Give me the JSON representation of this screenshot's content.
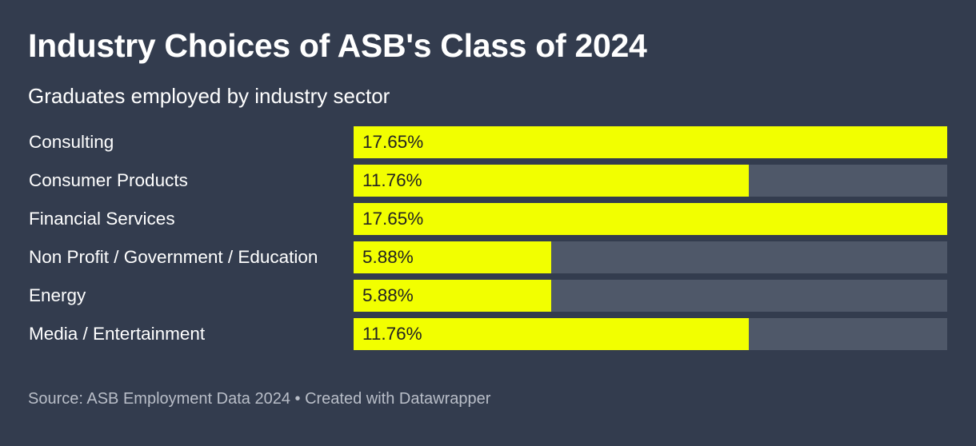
{
  "header": {
    "title": "Industry Choices of ASB's Class of 2024",
    "subtitle": "Graduates employed by industry sector"
  },
  "chart_data": {
    "type": "bar",
    "orientation": "horizontal",
    "title": "Industry Choices of ASB's Class of 2024",
    "subtitle": "Graduates employed by industry sector",
    "categories": [
      "Consulting",
      "Consumer Products",
      "Financial Services",
      "Non Profit / Government / Education",
      "Energy",
      "Media / Entertainment"
    ],
    "values": [
      17.65,
      11.76,
      17.65,
      5.88,
      5.88,
      11.76
    ],
    "value_labels": [
      "17.65%",
      "11.76%",
      "17.65%",
      "5.88%",
      "5.88%",
      "11.76%"
    ],
    "unit": "%",
    "xlim": [
      0,
      17.65
    ],
    "bar_color": "#f2ff00",
    "track_color": "#4f5869",
    "xlabel": "",
    "ylabel": ""
  },
  "footer": {
    "source": "Source: ASB Employment Data 2024 • Created with Datawrapper"
  },
  "colors": {
    "background": "#333c4e",
    "bar": "#f2ff00",
    "track": "#4f5869",
    "text": "#ffffff",
    "footer_text": "#b9bec8"
  }
}
